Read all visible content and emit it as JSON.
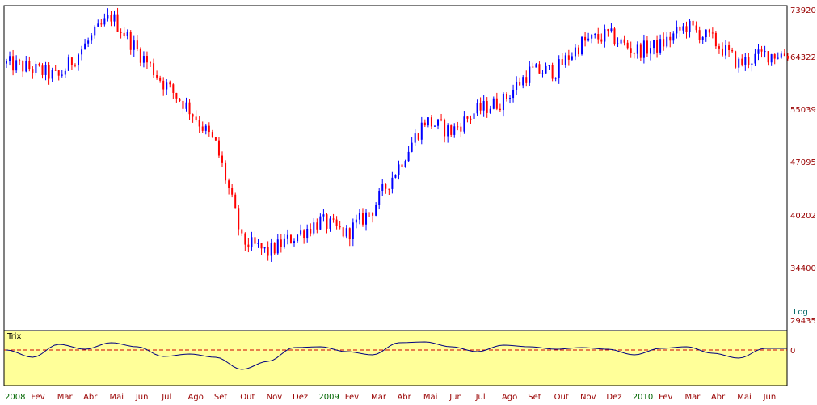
{
  "colors": {
    "up": "#0000ff",
    "down": "#ff0000",
    "axis_text": "#990000",
    "axis_text_highlight": "#006600",
    "log_text": "#006666",
    "trix_bg": "#ffff99",
    "trix_line": "#000080",
    "trix_zero": "#cc0000",
    "frame": "#000000"
  },
  "chart_data": [
    {
      "type": "candlestick",
      "scale_label": "Log",
      "y_scale": "log",
      "ylim": [
        29435,
        73920
      ],
      "y_ticks": [
        73920,
        64322,
        55039,
        47095,
        40202,
        34400,
        29435
      ],
      "x_ticks": [
        {
          "label": "2008",
          "highlight": true
        },
        {
          "label": "Fev",
          "highlight": false
        },
        {
          "label": "Mar",
          "highlight": false
        },
        {
          "label": "Abr",
          "highlight": false
        },
        {
          "label": "Mai",
          "highlight": false
        },
        {
          "label": "Jun",
          "highlight": false
        },
        {
          "label": "Jul",
          "highlight": false
        },
        {
          "label": "Ago",
          "highlight": false
        },
        {
          "label": "Set",
          "highlight": false
        },
        {
          "label": "Out",
          "highlight": false
        },
        {
          "label": "Nov",
          "highlight": false
        },
        {
          "label": "Dez",
          "highlight": false
        },
        {
          "label": "2009",
          "highlight": true
        },
        {
          "label": "Fev",
          "highlight": false
        },
        {
          "label": "Mar",
          "highlight": false
        },
        {
          "label": "Abr",
          "highlight": false
        },
        {
          "label": "Mai",
          "highlight": false
        },
        {
          "label": "Jun",
          "highlight": false
        },
        {
          "label": "Jul",
          "highlight": false
        },
        {
          "label": "Ago",
          "highlight": false
        },
        {
          "label": "Set",
          "highlight": false
        },
        {
          "label": "Out",
          "highlight": false
        },
        {
          "label": "Nov",
          "highlight": false
        },
        {
          "label": "Dez",
          "highlight": false
        },
        {
          "label": "2010",
          "highlight": true
        },
        {
          "label": "Fev",
          "highlight": false
        },
        {
          "label": "Mar",
          "highlight": false
        },
        {
          "label": "Abr",
          "highlight": false
        },
        {
          "label": "Mai",
          "highlight": false
        },
        {
          "label": "Jun",
          "highlight": false
        }
      ],
      "close_by_month": [
        {
          "month": "2008-01",
          "close": 63000
        },
        {
          "month": "2008-02",
          "close": 62000
        },
        {
          "month": "2008-03",
          "close": 60500
        },
        {
          "month": "2008-04",
          "close": 66500
        },
        {
          "month": "2008-05",
          "close": 72500
        },
        {
          "month": "2008-06",
          "close": 65500
        },
        {
          "month": "2008-07",
          "close": 59500
        },
        {
          "month": "2008-08",
          "close": 55000
        },
        {
          "month": "2008-09",
          "close": 49500
        },
        {
          "month": "2008-10",
          "close": 37200
        },
        {
          "month": "2008-11",
          "close": 36000
        },
        {
          "month": "2008-12",
          "close": 37700
        },
        {
          "month": "2009-01",
          "close": 39500
        },
        {
          "month": "2009-02",
          "close": 38000
        },
        {
          "month": "2009-03",
          "close": 40900
        },
        {
          "month": "2009-04",
          "close": 46500
        },
        {
          "month": "2009-05",
          "close": 53200
        },
        {
          "month": "2009-06",
          "close": 51500
        },
        {
          "month": "2009-07",
          "close": 54800
        },
        {
          "month": "2009-08",
          "close": 56500
        },
        {
          "month": "2009-09",
          "close": 61500
        },
        {
          "month": "2009-10",
          "close": 61700
        },
        {
          "month": "2009-11",
          "close": 67000
        },
        {
          "month": "2009-12",
          "close": 68600
        },
        {
          "month": "2010-01",
          "close": 65400
        },
        {
          "month": "2010-02",
          "close": 66500
        },
        {
          "month": "2010-03",
          "close": 70400
        },
        {
          "month": "2010-04",
          "close": 67500
        },
        {
          "month": "2010-05",
          "close": 63000
        },
        {
          "month": "2010-06",
          "close": 64800
        }
      ]
    },
    {
      "type": "line",
      "title": "Trix",
      "y_ticks": [
        0
      ],
      "zero_line": true,
      "values_by_month": [
        {
          "month": "2008-01",
          "value": 0.0
        },
        {
          "month": "2008-02",
          "value": -0.45
        },
        {
          "month": "2008-03",
          "value": 0.35
        },
        {
          "month": "2008-04",
          "value": 0.05
        },
        {
          "month": "2008-05",
          "value": 0.45
        },
        {
          "month": "2008-06",
          "value": 0.2
        },
        {
          "month": "2008-07",
          "value": -0.4
        },
        {
          "month": "2008-08",
          "value": -0.25
        },
        {
          "month": "2008-09",
          "value": -0.45
        },
        {
          "month": "2008-10",
          "value": -1.2
        },
        {
          "month": "2008-11",
          "value": -0.7
        },
        {
          "month": "2008-12",
          "value": 0.15
        },
        {
          "month": "2009-01",
          "value": 0.2
        },
        {
          "month": "2009-02",
          "value": -0.1
        },
        {
          "month": "2009-03",
          "value": -0.3
        },
        {
          "month": "2009-04",
          "value": 0.45
        },
        {
          "month": "2009-05",
          "value": 0.5
        },
        {
          "month": "2009-06",
          "value": 0.2
        },
        {
          "month": "2009-07",
          "value": -0.1
        },
        {
          "month": "2009-08",
          "value": 0.3
        },
        {
          "month": "2009-09",
          "value": 0.2
        },
        {
          "month": "2009-10",
          "value": 0.05
        },
        {
          "month": "2009-11",
          "value": 0.15
        },
        {
          "month": "2009-12",
          "value": 0.05
        },
        {
          "month": "2010-01",
          "value": -0.3
        },
        {
          "month": "2010-02",
          "value": 0.1
        },
        {
          "month": "2010-03",
          "value": 0.2
        },
        {
          "month": "2010-04",
          "value": -0.2
        },
        {
          "month": "2010-05",
          "value": -0.5
        },
        {
          "month": "2010-06",
          "value": 0.1
        }
      ]
    }
  ]
}
